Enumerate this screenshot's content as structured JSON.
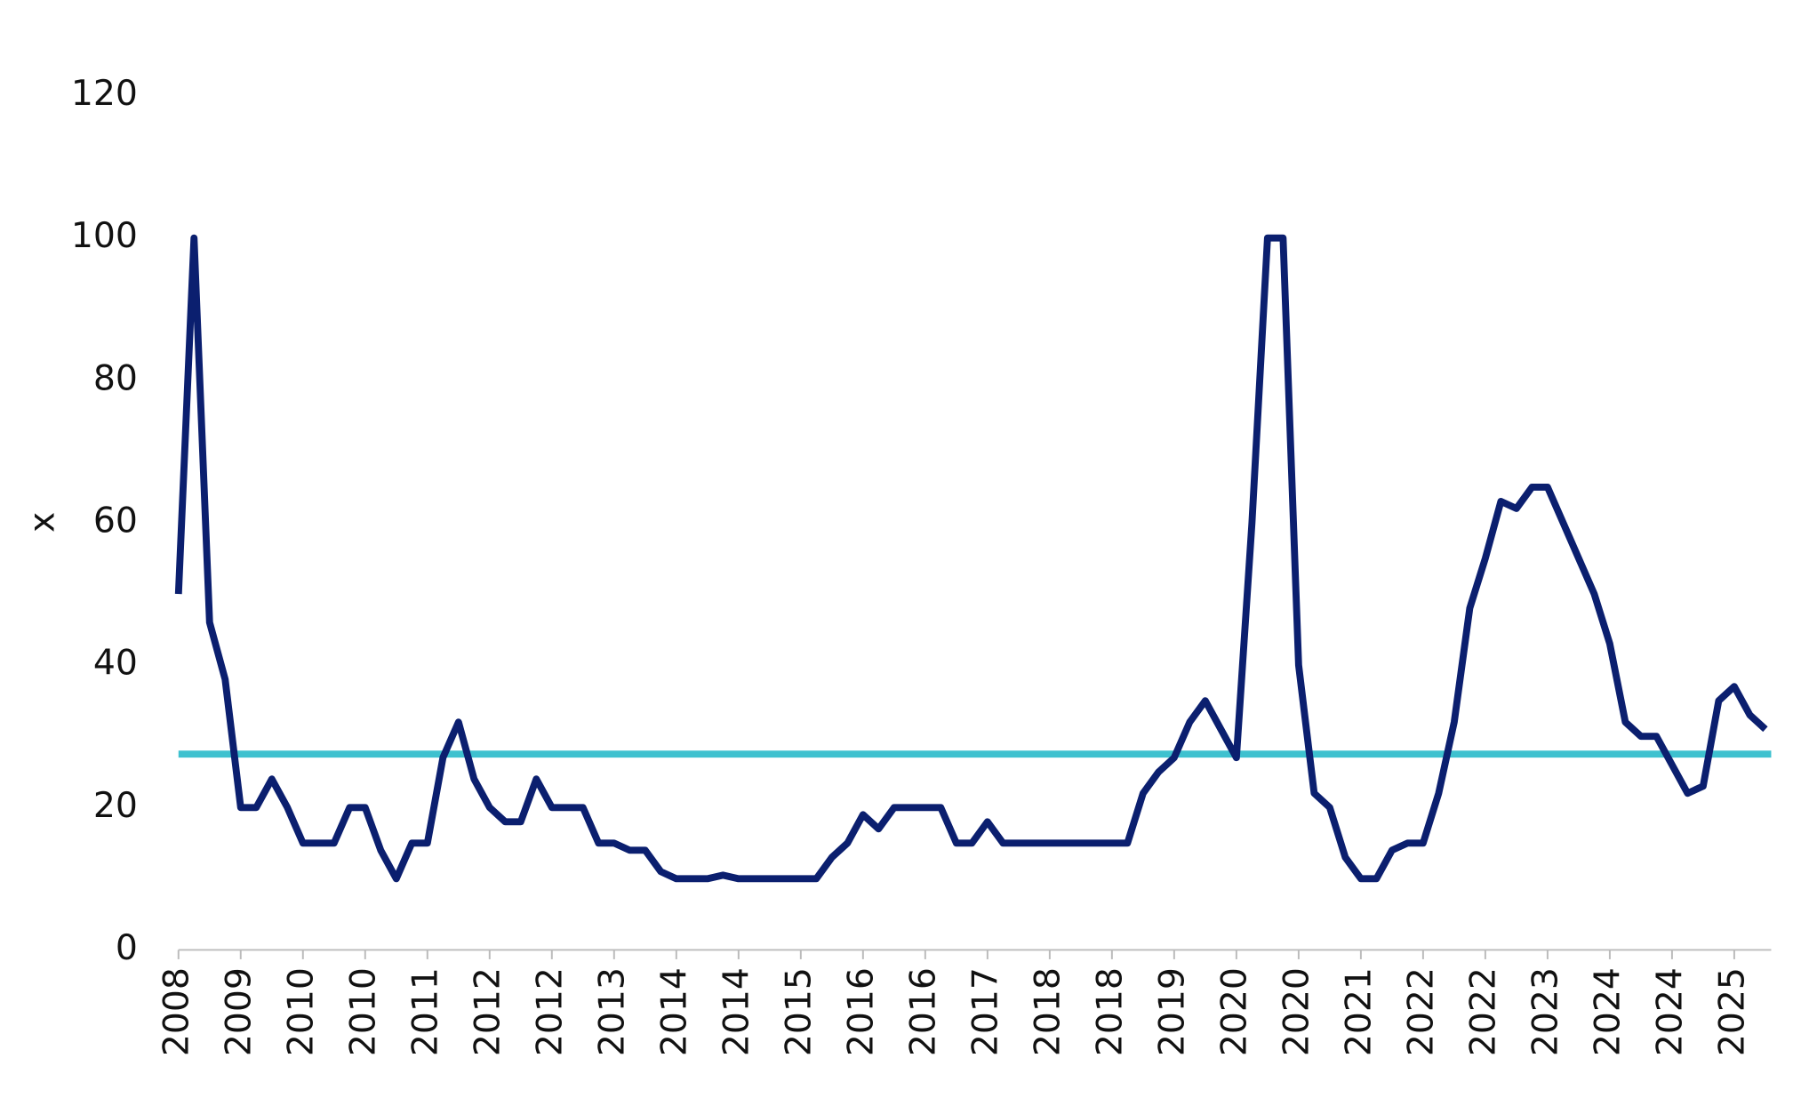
{
  "chart_data": {
    "type": "line",
    "y_label": "x",
    "categories": [
      "2008",
      null,
      null,
      null,
      "2009",
      null,
      null,
      null,
      "2010",
      null,
      null,
      null,
      "2010",
      null,
      null,
      null,
      "2011",
      null,
      null,
      null,
      "2012",
      null,
      null,
      null,
      "2012",
      null,
      null,
      null,
      "2013",
      null,
      null,
      null,
      "2014",
      null,
      null,
      null,
      "2014",
      null,
      null,
      null,
      "2015",
      null,
      null,
      null,
      "2016",
      null,
      null,
      null,
      "2016",
      null,
      null,
      null,
      "2017",
      null,
      null,
      null,
      "2018",
      null,
      null,
      null,
      "2018",
      null,
      null,
      null,
      "2019",
      null,
      null,
      null,
      "2020",
      null,
      null,
      null,
      "2020",
      null,
      null,
      null,
      "2021",
      null,
      null,
      null,
      "2022",
      null,
      null,
      null,
      "2022",
      null,
      null,
      null,
      "2023",
      null,
      null,
      null,
      "2024",
      null,
      null,
      null,
      "2024",
      null,
      null,
      null,
      "2025",
      null,
      null
    ],
    "series": [
      {
        "color": "#0b1f6f",
        "values": [
          50,
          100,
          46,
          38,
          20,
          20,
          24,
          20,
          15,
          15,
          15,
          20,
          20,
          14,
          10,
          15,
          15,
          27,
          32,
          24,
          20,
          18,
          18,
          24,
          20,
          20,
          20,
          15,
          15,
          14,
          14,
          11,
          10,
          10,
          10,
          10.5,
          10,
          10,
          10,
          10,
          10,
          10,
          13,
          15,
          19,
          17,
          20,
          20,
          20,
          20,
          15,
          15,
          18,
          15,
          15,
          15,
          15,
          15,
          15,
          15,
          15,
          15,
          22,
          25,
          27,
          32,
          35,
          31,
          27,
          60,
          100,
          100,
          40,
          22,
          20,
          13,
          10,
          10,
          14,
          15,
          15,
          22,
          32,
          48,
          55,
          63,
          62,
          65,
          65,
          60,
          55,
          50,
          43,
          32,
          30,
          30,
          26,
          22,
          23,
          35,
          37,
          33,
          31
        ]
      }
    ],
    "reference_line": {
      "value": 27.5,
      "color": "#3ec1cf"
    },
    "ylim": [
      0,
      120
    ],
    "yticks": [
      0,
      20,
      40,
      60,
      80,
      100,
      120
    ],
    "grid": false
  }
}
